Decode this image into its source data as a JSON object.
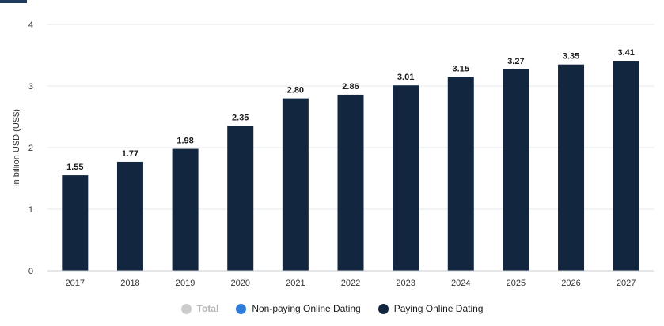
{
  "chart_data": {
    "type": "bar",
    "categories": [
      "2017",
      "2018",
      "2019",
      "2020",
      "2021",
      "2022",
      "2023",
      "2024",
      "2025",
      "2026",
      "2027"
    ],
    "series": [
      {
        "name": "Paying Online Dating",
        "values": [
          1.55,
          1.77,
          1.98,
          2.35,
          2.8,
          2.86,
          3.01,
          3.15,
          3.27,
          3.35,
          3.41
        ],
        "labels": [
          "1.55",
          "1.77",
          "1.98",
          "2.35",
          "2.80",
          "2.86",
          "3.01",
          "3.15",
          "3.27",
          "3.35",
          "3.41"
        ],
        "color": "#12263f"
      }
    ],
    "ylabel": "in billion USD (US$)",
    "ylim": [
      0,
      4
    ],
    "yticks": [
      "0",
      "1",
      "2",
      "3",
      "4"
    ],
    "grid": true,
    "legend_position": "bottom-center"
  },
  "legend": {
    "items": [
      {
        "label": "Total",
        "color": "#cccccc",
        "active": false
      },
      {
        "label": "Non-paying Online Dating",
        "color": "#2f7bd8",
        "active": true
      },
      {
        "label": "Paying Online Dating",
        "color": "#12263f",
        "active": true
      }
    ]
  }
}
